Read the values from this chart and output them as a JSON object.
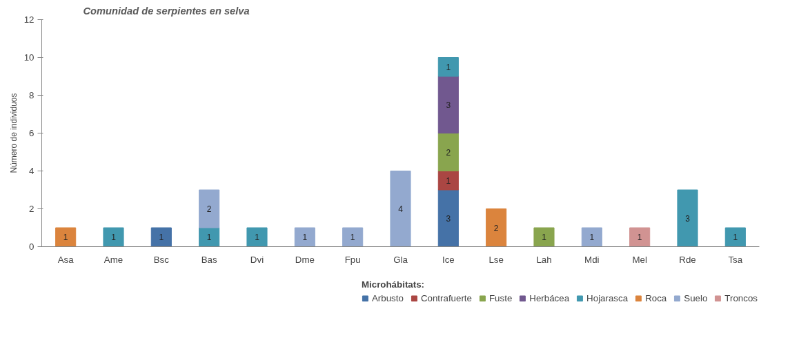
{
  "chart_data": {
    "type": "bar",
    "stacked": true,
    "title": "Comunidad de serpientes en selva",
    "ylabel": "Número de individuos",
    "legend_title": "Microhábitats:",
    "categories": [
      "Asa",
      "Ame",
      "Bsc",
      "Bas",
      "Dvi",
      "Dme",
      "Fpu",
      "Gla",
      "Ice",
      "Lse",
      "Lah",
      "Mdi",
      "Mel",
      "Rde",
      "Tsa"
    ],
    "series": [
      {
        "name": "Arbusto",
        "color": "#4572a7",
        "values": [
          null,
          null,
          1,
          null,
          null,
          null,
          null,
          null,
          3,
          null,
          null,
          null,
          null,
          null,
          null
        ]
      },
      {
        "name": "Contrafuerte",
        "color": "#aa4643",
        "values": [
          null,
          null,
          null,
          null,
          null,
          null,
          null,
          null,
          1,
          null,
          null,
          null,
          null,
          null,
          null
        ]
      },
      {
        "name": "Fuste",
        "color": "#89a54e",
        "values": [
          null,
          null,
          null,
          null,
          null,
          null,
          null,
          null,
          2,
          null,
          1,
          null,
          null,
          null,
          null
        ]
      },
      {
        "name": "Herbácea",
        "color": "#71588f",
        "values": [
          null,
          null,
          null,
          null,
          null,
          null,
          null,
          null,
          3,
          null,
          null,
          null,
          null,
          null,
          null
        ]
      },
      {
        "name": "Hojarasca",
        "color": "#4198af",
        "values": [
          null,
          1,
          null,
          1,
          1,
          null,
          null,
          null,
          1,
          null,
          null,
          null,
          null,
          3,
          1
        ]
      },
      {
        "name": "Roca",
        "color": "#db843d",
        "values": [
          1,
          null,
          null,
          null,
          null,
          null,
          null,
          null,
          null,
          2,
          null,
          null,
          null,
          null,
          null
        ]
      },
      {
        "name": "Suelo",
        "color": "#93a9cf",
        "values": [
          null,
          null,
          null,
          2,
          null,
          1,
          1,
          4,
          null,
          null,
          null,
          1,
          null,
          null,
          null
        ]
      },
      {
        "name": "Troncos",
        "color": "#d19392",
        "values": [
          null,
          null,
          null,
          null,
          null,
          null,
          null,
          null,
          null,
          null,
          null,
          null,
          1,
          null,
          null
        ]
      }
    ],
    "ylim": [
      0,
      12
    ],
    "yticks": [
      0,
      2,
      4,
      6,
      8,
      10,
      12
    ],
    "grid": false,
    "legend": "bottom",
    "data_labels": true
  }
}
